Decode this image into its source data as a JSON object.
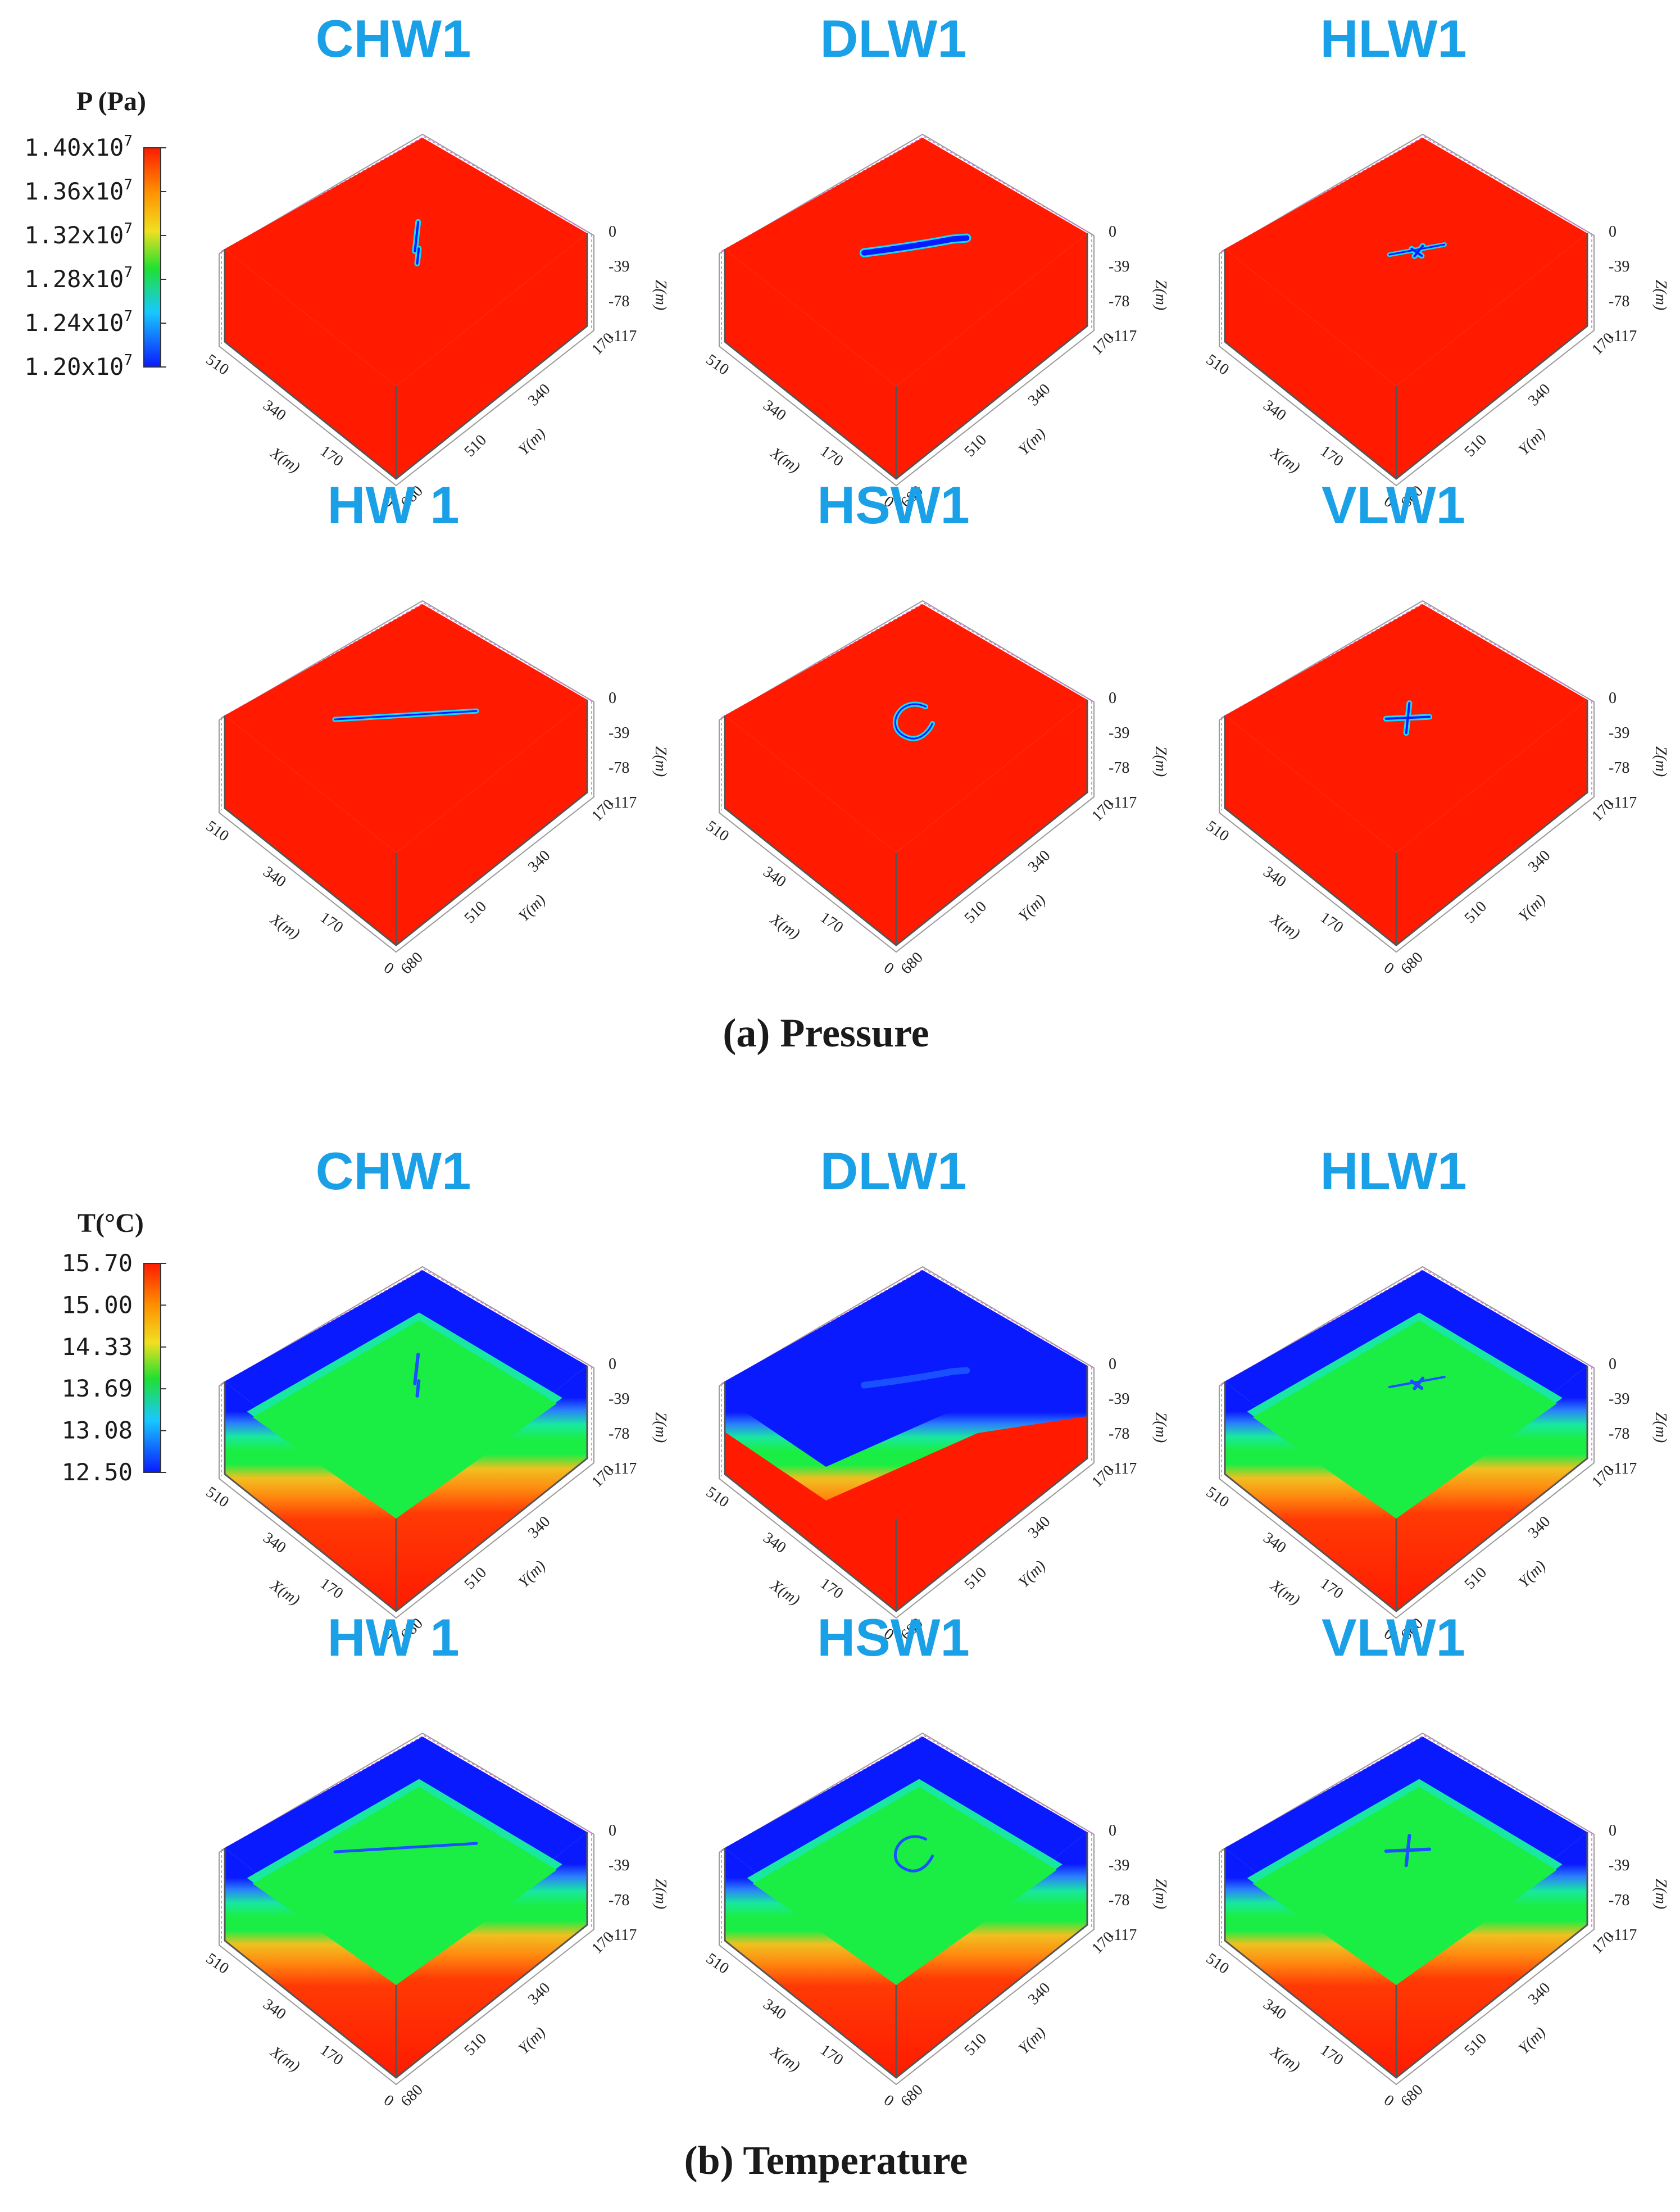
{
  "sections": {
    "pressure": {
      "caption": "(a) Pressure",
      "legend": {
        "title": "P (Pa)",
        "ticks": [
          "1.40x10^7",
          "1.36x10^7",
          "1.32x10^7",
          "1.28x10^7",
          "1.24x10^7",
          "1.20x10^7"
        ]
      },
      "panels": [
        {
          "title": "CHW1",
          "well": "chw"
        },
        {
          "title": "DLW1",
          "well": "dlw"
        },
        {
          "title": "HLW1",
          "well": "hlw"
        },
        {
          "title": "HW 1",
          "well": "hw"
        },
        {
          "title": "HSW1",
          "well": "hsw"
        },
        {
          "title": "VLW1",
          "well": "vlw"
        }
      ]
    },
    "temperature": {
      "caption": "(b) Temperature",
      "legend": {
        "title": "T(°C)",
        "ticks": [
          "15.70",
          "15.00",
          "14.33",
          "13.69",
          "13.08",
          "12.50"
        ]
      },
      "panels": [
        {
          "title": "CHW1",
          "well": "chw"
        },
        {
          "title": "DLW1",
          "well": "dlw"
        },
        {
          "title": "HLW1",
          "well": "hlw"
        },
        {
          "title": "HW 1",
          "well": "hw"
        },
        {
          "title": "HSW1",
          "well": "hsw"
        },
        {
          "title": "VLW1",
          "well": "vlw"
        }
      ]
    }
  },
  "axes": {
    "x_label": "X(m)",
    "y_label": "Y(m)",
    "z_label": "Z(m)",
    "x_ticks": [
      "510",
      "340",
      "170",
      "0"
    ],
    "y_ticks": [
      "680",
      "510",
      "340",
      "170"
    ],
    "z_ticks": [
      "0",
      "-39",
      "-78",
      "-117"
    ]
  },
  "colors": {
    "title": "#1aa0e6",
    "pressure_top": "#ff1a00",
    "pressure_side": "#ff1a00",
    "temp_top_outer": "#0a1aff",
    "temp_top_inner": "#1aee44",
    "temp_side_bands": [
      "#0a1aff",
      "#2b7cff",
      "#1aee44",
      "#f0c020",
      "#ff8a10",
      "#ff1a00"
    ],
    "well_pressure": [
      "#0a1aff",
      "#18d8ff",
      "#18e060"
    ],
    "colormap": [
      "#ff1a00",
      "#ffd000",
      "#20e030",
      "#18c8ff",
      "#0a1aff"
    ]
  }
}
